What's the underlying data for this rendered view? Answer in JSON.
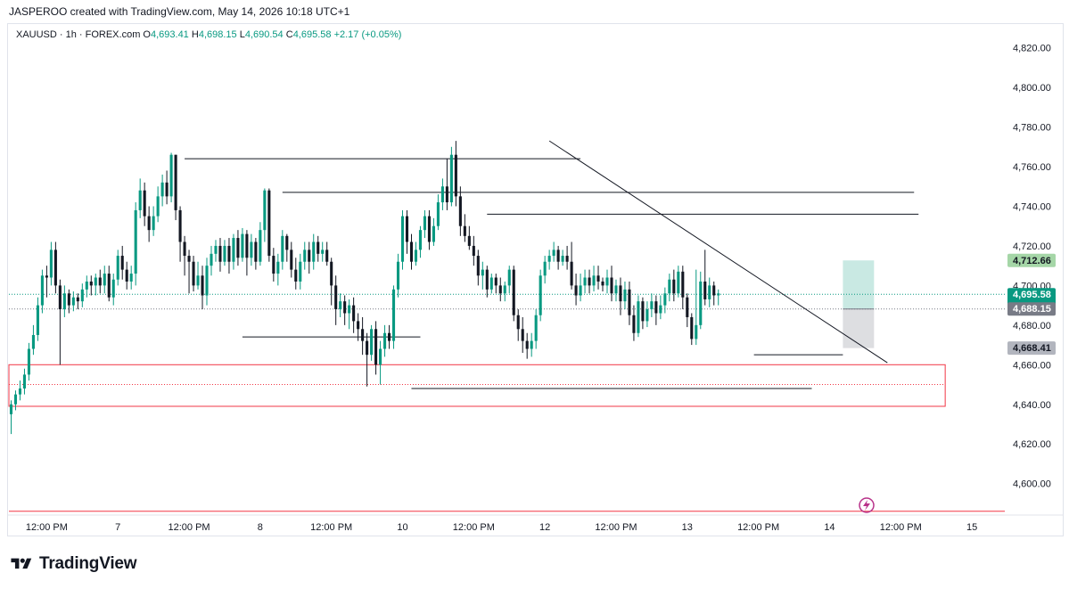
{
  "header": {
    "credit": "JASPEROO created with TradingView.com, May 14, 2026 10:18 UTC+1"
  },
  "legend": {
    "symbol": "XAUUSD · 1h · FOREX.com",
    "open_label": "O",
    "open": "4,693.41",
    "high_label": "H",
    "high": "4,698.15",
    "low_label": "L",
    "low": "4,690.54",
    "close_label": "C",
    "close": "4,695.58",
    "change": "+2.17 (+0.05%)"
  },
  "brand": {
    "name": "TradingView",
    "logo_icon": "tradingview-logo-icon"
  },
  "colors": {
    "up": "#089981",
    "down": "#131722",
    "zone": "#f23645",
    "price_tag": "#089981",
    "grey_tag": "#b2b5be"
  },
  "chart_data": {
    "type": "candlestick",
    "symbol": "XAUUSD",
    "timeframe": "1h",
    "ylim": [
      4585,
      4832
    ],
    "y_ticks": [
      4600,
      4620,
      4640,
      4660,
      4680,
      4700,
      4720,
      4740,
      4760,
      4780,
      4800,
      4820
    ],
    "y_tick_labels": [
      "4,600.00",
      "4,620.00",
      "4,640.00",
      "4,660.00",
      "4,680.00",
      "4,700.00",
      "4,720.00",
      "4,740.00",
      "4,760.00",
      "4,780.00",
      "4,800.00",
      "4,820.00"
    ],
    "x_ticks": [
      {
        "t": 8,
        "label": "12:00 PM"
      },
      {
        "t": 24,
        "label": "7"
      },
      {
        "t": 40,
        "label": "12:00 PM"
      },
      {
        "t": 56,
        "label": "8"
      },
      {
        "t": 72,
        "label": "12:00 PM"
      },
      {
        "t": 88,
        "label": "10"
      },
      {
        "t": 104,
        "label": "12:00 PM"
      },
      {
        "t": 120,
        "label": "12"
      },
      {
        "t": 136,
        "label": "12:00 PM"
      },
      {
        "t": 152,
        "label": "13"
      },
      {
        "t": 168,
        "label": "12:00 PM"
      },
      {
        "t": 184,
        "label": "14"
      },
      {
        "t": 200,
        "label": "12:00 PM"
      },
      {
        "t": 216,
        "label": "15"
      }
    ],
    "xlim": [
      -0.5,
      223.4
    ],
    "candles": [
      [
        4635,
        4640,
        4625,
        4642
      ],
      [
        4640,
        4645,
        4637,
        4647
      ],
      [
        4645,
        4648,
        4642,
        4652
      ],
      [
        4648,
        4655,
        4645,
        4658
      ],
      [
        4655,
        4668,
        4652,
        4671
      ],
      [
        4668,
        4675,
        4665,
        4680
      ],
      [
        4675,
        4690,
        4672,
        4694
      ],
      [
        4690,
        4705,
        4686,
        4708
      ],
      [
        4705,
        4704,
        4694,
        4710
      ],
      [
        4704,
        4718,
        4700,
        4722
      ],
      [
        4718,
        4700,
        4696,
        4722
      ],
      [
        4700,
        4688,
        4660,
        4703
      ],
      [
        4688,
        4696,
        4684,
        4700
      ],
      [
        4696,
        4690,
        4686,
        4698
      ],
      [
        4690,
        4694,
        4687,
        4697
      ],
      [
        4694,
        4692,
        4688,
        4696
      ],
      [
        4692,
        4698,
        4689,
        4701
      ],
      [
        4698,
        4702,
        4694,
        4705
      ],
      [
        4702,
        4700,
        4695,
        4705
      ],
      [
        4700,
        4704,
        4695,
        4706
      ],
      [
        4704,
        4700,
        4696,
        4708
      ],
      [
        4700,
        4706,
        4696,
        4710
      ],
      [
        4706,
        4694,
        4692,
        4710
      ],
      [
        4694,
        4703,
        4690,
        4706
      ],
      [
        4703,
        4715,
        4700,
        4718
      ],
      [
        4715,
        4708,
        4703,
        4720
      ],
      [
        4708,
        4702,
        4698,
        4712
      ],
      [
        4702,
        4706,
        4698,
        4710
      ],
      [
        4706,
        4738,
        4700,
        4742
      ],
      [
        4738,
        4748,
        4734,
        4754
      ],
      [
        4748,
        4735,
        4730,
        4752
      ],
      [
        4735,
        4728,
        4722,
        4740
      ],
      [
        4728,
        4735,
        4725,
        4740
      ],
      [
        4735,
        4745,
        4732,
        4750
      ],
      [
        4745,
        4752,
        4740,
        4756
      ],
      [
        4752,
        4745,
        4741,
        4758
      ],
      [
        4745,
        4766,
        4742,
        4767
      ],
      [
        4766,
        4738,
        4733,
        4766
      ],
      [
        4738,
        4722,
        4712,
        4740
      ],
      [
        4722,
        4715,
        4705,
        4725
      ],
      [
        4715,
        4712,
        4696,
        4718
      ],
      [
        4712,
        4700,
        4697,
        4715
      ],
      [
        4700,
        4705,
        4698,
        4712
      ],
      [
        4705,
        4695,
        4688,
        4710
      ],
      [
        4695,
        4710,
        4690,
        4714
      ],
      [
        4710,
        4716,
        4705,
        4720
      ],
      [
        4716,
        4720,
        4712,
        4723
      ],
      [
        4720,
        4712,
        4707,
        4724
      ],
      [
        4712,
        4720,
        4710,
        4723
      ],
      [
        4720,
        4712,
        4706,
        4724
      ],
      [
        4712,
        4724,
        4708,
        4726
      ],
      [
        4724,
        4714,
        4710,
        4728
      ],
      [
        4714,
        4726,
        4712,
        4729
      ],
      [
        4726,
        4714,
        4705,
        4728
      ],
      [
        4714,
        4722,
        4710,
        4726
      ],
      [
        4722,
        4712,
        4708,
        4724
      ],
      [
        4712,
        4728,
        4710,
        4732
      ],
      [
        4728,
        4748,
        4722,
        4749
      ],
      [
        4748,
        4715,
        4712,
        4749
      ],
      [
        4715,
        4706,
        4702,
        4719
      ],
      [
        4706,
        4712,
        4700,
        4716
      ],
      [
        4712,
        4725,
        4708,
        4728
      ],
      [
        4725,
        4718,
        4712,
        4726
      ],
      [
        4718,
        4708,
        4704,
        4722
      ],
      [
        4708,
        4702,
        4698,
        4714
      ],
      [
        4702,
        4712,
        4698,
        4716
      ],
      [
        4712,
        4718,
        4708,
        4722
      ],
      [
        4718,
        4712,
        4706,
        4722
      ],
      [
        4712,
        4722,
        4708,
        4726
      ],
      [
        4722,
        4716,
        4712,
        4725
      ],
      [
        4716,
        4718,
        4712,
        4722
      ],
      [
        4718,
        4712,
        4710,
        4722
      ],
      [
        4712,
        4700,
        4690,
        4714
      ],
      [
        4700,
        4688,
        4680,
        4705
      ],
      [
        4688,
        4692,
        4684,
        4696
      ],
      [
        4692,
        4686,
        4680,
        4695
      ],
      [
        4686,
        4690,
        4678,
        4693
      ],
      [
        4690,
        4682,
        4676,
        4694
      ],
      [
        4682,
        4678,
        4672,
        4686
      ],
      [
        4678,
        4672,
        4665,
        4684
      ],
      [
        4672,
        4665,
        4649,
        4676
      ],
      [
        4665,
        4678,
        4662,
        4680
      ],
      [
        4678,
        4660,
        4655,
        4682
      ],
      [
        4660,
        4668,
        4650,
        4672
      ],
      [
        4668,
        4676,
        4664,
        4680
      ],
      [
        4676,
        4672,
        4668,
        4680
      ],
      [
        4672,
        4698,
        4668,
        4700
      ],
      [
        4698,
        4712,
        4694,
        4716
      ],
      [
        4712,
        4735,
        4708,
        4738
      ],
      [
        4735,
        4722,
        4716,
        4738
      ],
      [
        4722,
        4712,
        4708,
        4726
      ],
      [
        4712,
        4718,
        4710,
        4722
      ],
      [
        4718,
        4728,
        4714,
        4730
      ],
      [
        4728,
        4735,
        4724,
        4738
      ],
      [
        4735,
        4722,
        4718,
        4738
      ],
      [
        4722,
        4730,
        4720,
        4734
      ],
      [
        4730,
        4742,
        4728,
        4746
      ],
      [
        4742,
        4750,
        4738,
        4754
      ],
      [
        4750,
        4742,
        4738,
        4764
      ],
      [
        4742,
        4766,
        4740,
        4770
      ],
      [
        4766,
        4745,
        4740,
        4773
      ],
      [
        4745,
        4730,
        4725,
        4750
      ],
      [
        4730,
        4725,
        4722,
        4736
      ],
      [
        4725,
        4720,
        4718,
        4730
      ],
      [
        4720,
        4715,
        4710,
        4725
      ],
      [
        4715,
        4705,
        4700,
        4718
      ],
      [
        4705,
        4708,
        4698,
        4712
      ],
      [
        4708,
        4698,
        4694,
        4710
      ],
      [
        4698,
        4704,
        4696,
        4706
      ],
      [
        4704,
        4700,
        4696,
        4706
      ],
      [
        4700,
        4696,
        4692,
        4704
      ],
      [
        4696,
        4700,
        4692,
        4702
      ],
      [
        4700,
        4708,
        4696,
        4710
      ],
      [
        4708,
        4685,
        4682,
        4710
      ],
      [
        4685,
        4678,
        4672,
        4688
      ],
      [
        4678,
        4672,
        4666,
        4684
      ],
      [
        4672,
        4668,
        4663,
        4676
      ],
      [
        4668,
        4672,
        4664,
        4676
      ],
      [
        4672,
        4685,
        4668,
        4688
      ],
      [
        4685,
        4705,
        4682,
        4708
      ],
      [
        4705,
        4712,
        4701,
        4715
      ],
      [
        4712,
        4715,
        4708,
        4718
      ],
      [
        4715,
        4718,
        4712,
        4722
      ],
      [
        4718,
        4712,
        4708,
        4720
      ],
      [
        4712,
        4715,
        4710,
        4718
      ],
      [
        4715,
        4712,
        4708,
        4720
      ],
      [
        4712,
        4700,
        4698,
        4722
      ],
      [
        4700,
        4695,
        4690,
        4706
      ],
      [
        4695,
        4700,
        4692,
        4706
      ],
      [
        4700,
        4704,
        4696,
        4708
      ],
      [
        4704,
        4700,
        4696,
        4708
      ],
      [
        4700,
        4705,
        4697,
        4710
      ],
      [
        4705,
        4702,
        4698,
        4710
      ],
      [
        4702,
        4700,
        4697,
        4704
      ],
      [
        4700,
        4704,
        4696,
        4708
      ],
      [
        4704,
        4696,
        4692,
        4710
      ],
      [
        4696,
        4700,
        4692,
        4703
      ],
      [
        4700,
        4692,
        4685,
        4704
      ],
      [
        4692,
        4698,
        4688,
        4702
      ],
      [
        4698,
        4685,
        4680,
        4702
      ],
      [
        4685,
        4676,
        4672,
        4690
      ],
      [
        4676,
        4692,
        4674,
        4695
      ],
      [
        4692,
        4682,
        4678,
        4694
      ],
      [
        4682,
        4688,
        4679,
        4692
      ],
      [
        4688,
        4692,
        4684,
        4696
      ],
      [
        4692,
        4686,
        4680,
        4695
      ],
      [
        4686,
        4690,
        4683,
        4695
      ],
      [
        4690,
        4696,
        4686,
        4699
      ],
      [
        4696,
        4703,
        4692,
        4706
      ],
      [
        4703,
        4696,
        4692,
        4708
      ],
      [
        4696,
        4707,
        4694,
        4710
      ],
      [
        4707,
        4694,
        4688,
        4710
      ],
      [
        4694,
        4684,
        4679,
        4696
      ],
      [
        4684,
        4673,
        4670,
        4686
      ],
      [
        4673,
        4680,
        4670,
        4708
      ],
      [
        4680,
        4702,
        4678,
        4707
      ],
      [
        4702,
        4693,
        4690,
        4718
      ],
      [
        4693,
        4700,
        4689,
        4704
      ],
      [
        4700,
        4695,
        4690,
        4702
      ],
      [
        4695,
        4696,
        4690,
        4698
      ]
    ],
    "levels": [
      {
        "y": 4764,
        "t1": 39,
        "t2": 128
      },
      {
        "y": 4747,
        "t1": 61,
        "t2": 203
      },
      {
        "y": 4736,
        "t1": 107,
        "t2": 204
      },
      {
        "y": 4674,
        "t1": 52,
        "t2": 92
      },
      {
        "y": 4665,
        "t1": 167,
        "t2": 187
      },
      {
        "y": 4648,
        "t1": 90,
        "t2": 180
      }
    ],
    "trendline": {
      "t1": 121,
      "y1": 4773,
      "t2": 197,
      "y2": 4661
    },
    "support_zone": {
      "y_top": 4660,
      "y_bottom": 4639,
      "t1": -0.5,
      "t2": 210,
      "mid": 4650
    },
    "zone_bottom_line": 4586,
    "position_box": {
      "t1": 187,
      "t2": 194,
      "entry": 4688.15,
      "target": 4712.66,
      "stop": 4668.41
    },
    "price_tags": [
      {
        "label": "4,712.66",
        "y": 4712.66,
        "kind": "target"
      },
      {
        "label": "4,695.58",
        "sub": "41:26",
        "y": 4695.58,
        "kind": "last"
      },
      {
        "label": "4,688.15",
        "y": 4688.15,
        "kind": "entry"
      },
      {
        "label": "4,668.41",
        "y": 4668.41,
        "kind": "stop"
      }
    ],
    "last_price_line": 4695.58,
    "alert_icon": "lightning-alert-icon"
  }
}
